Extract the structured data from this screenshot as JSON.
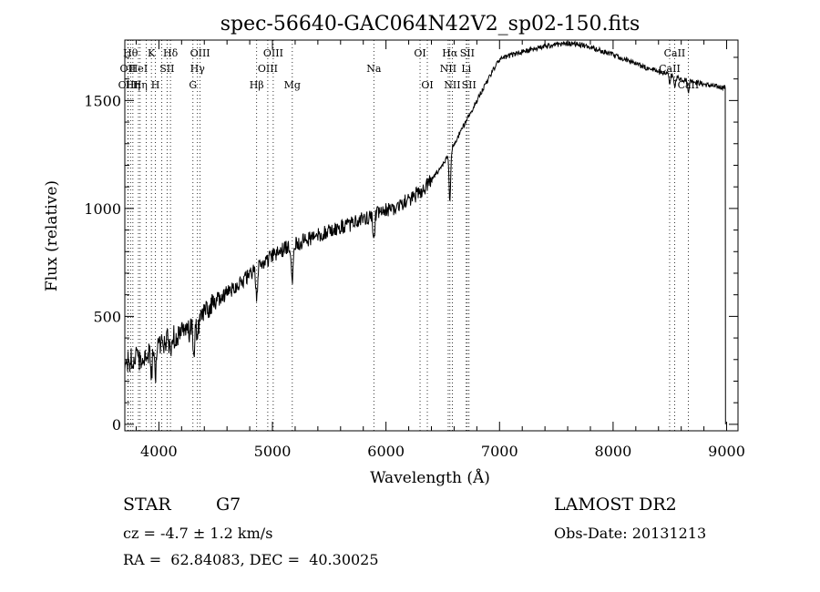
{
  "chart_data": {
    "type": "line",
    "title": "spec-56640-GAC064N42V2_sp02-150.fits",
    "xlabel": "Wavelength (Å)",
    "ylabel": "Flux (relative)",
    "xlim": [
      3700,
      9100
    ],
    "ylim": [
      -30,
      1780
    ],
    "xticks": [
      4000,
      5000,
      6000,
      7000,
      8000,
      9000
    ],
    "yticks": [
      0,
      500,
      1000,
      1500
    ],
    "grid": false,
    "series": [
      {
        "points": [
          [
            3700,
            280
          ],
          [
            3750,
            300
          ],
          [
            3800,
            310
          ],
          [
            3850,
            300
          ],
          [
            3900,
            330
          ],
          [
            3950,
            340
          ],
          [
            4000,
            370
          ],
          [
            4050,
            380
          ],
          [
            4100,
            395
          ],
          [
            4150,
            410
          ],
          [
            4200,
            420
          ],
          [
            4250,
            430
          ],
          [
            4300,
            440
          ],
          [
            4350,
            470
          ],
          [
            4400,
            520
          ],
          [
            4500,
            570
          ],
          [
            4600,
            610
          ],
          [
            4700,
            650
          ],
          [
            4800,
            690
          ],
          [
            4900,
            740
          ],
          [
            5000,
            780
          ],
          [
            5100,
            810
          ],
          [
            5200,
            835
          ],
          [
            5300,
            855
          ],
          [
            5400,
            875
          ],
          [
            5500,
            895
          ],
          [
            5600,
            910
          ],
          [
            5700,
            930
          ],
          [
            5800,
            950
          ],
          [
            5900,
            970
          ],
          [
            6000,
            990
          ],
          [
            6100,
            1010
          ],
          [
            6200,
            1040
          ],
          [
            6300,
            1075
          ],
          [
            6400,
            1130
          ],
          [
            6500,
            1200
          ],
          [
            6600,
            1300
          ],
          [
            6700,
            1400
          ],
          [
            6800,
            1500
          ],
          [
            6900,
            1600
          ],
          [
            7000,
            1690
          ],
          [
            7100,
            1710
          ],
          [
            7200,
            1725
          ],
          [
            7300,
            1740
          ],
          [
            7400,
            1750
          ],
          [
            7500,
            1760
          ],
          [
            7600,
            1765
          ],
          [
            7700,
            1760
          ],
          [
            7800,
            1745
          ],
          [
            7900,
            1730
          ],
          [
            8000,
            1710
          ],
          [
            8100,
            1690
          ],
          [
            8200,
            1670
          ],
          [
            8300,
            1650
          ],
          [
            8400,
            1635
          ],
          [
            8500,
            1620
          ],
          [
            8600,
            1600
          ],
          [
            8700,
            1590
          ],
          [
            8800,
            1575
          ],
          [
            8900,
            1565
          ],
          [
            8990,
            1560
          ]
        ],
        "absorption_dips": [
          {
            "x": 3934,
            "depth": 120
          },
          {
            "x": 3969,
            "depth": 120
          },
          {
            "x": 4102,
            "depth": 60
          },
          {
            "x": 4308,
            "depth": 110
          },
          {
            "x": 4341,
            "depth": 60
          },
          {
            "x": 4861,
            "depth": 130
          },
          {
            "x": 5175,
            "depth": 150
          },
          {
            "x": 5893,
            "depth": 110
          },
          {
            "x": 6563,
            "depth": 230
          },
          {
            "x": 8498,
            "depth": 40
          },
          {
            "x": 8542,
            "depth": 50
          },
          {
            "x": 8662,
            "depth": 50
          }
        ]
      }
    ],
    "lines": [
      {
        "x": 3727,
        "label": "OII",
        "row": 1
      },
      {
        "x": 3729,
        "label": "OIII",
        "row": 2
      },
      {
        "x": 3750,
        "label": "Hθ",
        "row": 0
      },
      {
        "x": 3771,
        "label": "Hη",
        "row": 2
      },
      {
        "x": 3820,
        "label": "HeI",
        "row": 1
      },
      {
        "x": 3835,
        "label": "Hη",
        "row": 2
      },
      {
        "x": 3889,
        "label": "",
        "row": 0
      },
      {
        "x": 3934,
        "label": "K",
        "row": 0
      },
      {
        "x": 3969,
        "label": "H",
        "row": 2
      },
      {
        "x": 4026,
        "label": "",
        "row": 0
      },
      {
        "x": 4072,
        "label": "SII",
        "row": 1
      },
      {
        "x": 4102,
        "label": "Hδ",
        "row": 0
      },
      {
        "x": 4300,
        "label": "G",
        "row": 2
      },
      {
        "x": 4340,
        "label": "Hγ",
        "row": 1
      },
      {
        "x": 4363,
        "label": "OIII",
        "row": 0
      },
      {
        "x": 4861,
        "label": "Hβ",
        "row": 2
      },
      {
        "x": 4959,
        "label": "OIII",
        "row": 1
      },
      {
        "x": 5007,
        "label": "OIII",
        "row": 0
      },
      {
        "x": 5175,
        "label": "Mg",
        "row": 2
      },
      {
        "x": 5893,
        "label": "Na",
        "row": 1
      },
      {
        "x": 6300,
        "label": "OI",
        "row": 0
      },
      {
        "x": 6364,
        "label": "OI",
        "row": 2
      },
      {
        "x": 6548,
        "label": "NII",
        "row": 1
      },
      {
        "x": 6563,
        "label": "Hα",
        "row": 0
      },
      {
        "x": 6584,
        "label": "NII",
        "row": 2
      },
      {
        "x": 6707,
        "label": "Li",
        "row": 1
      },
      {
        "x": 6716,
        "label": "SII",
        "row": 0
      },
      {
        "x": 6731,
        "label": "SII",
        "row": 2
      },
      {
        "x": 8498,
        "label": "CaII",
        "row": 1
      },
      {
        "x": 8542,
        "label": "CaII",
        "row": 0
      },
      {
        "x": 8662,
        "label": "CaII",
        "row": 2
      }
    ]
  },
  "info": {
    "object_class": "STAR",
    "subclass": "G7",
    "survey": "LAMOST DR2",
    "redshift": "cz = -4.7 ± 1.2 km/s",
    "obs_date": "Obs-Date: 20131213",
    "coords": "RA =  62.84083, DEC =  40.30025"
  }
}
